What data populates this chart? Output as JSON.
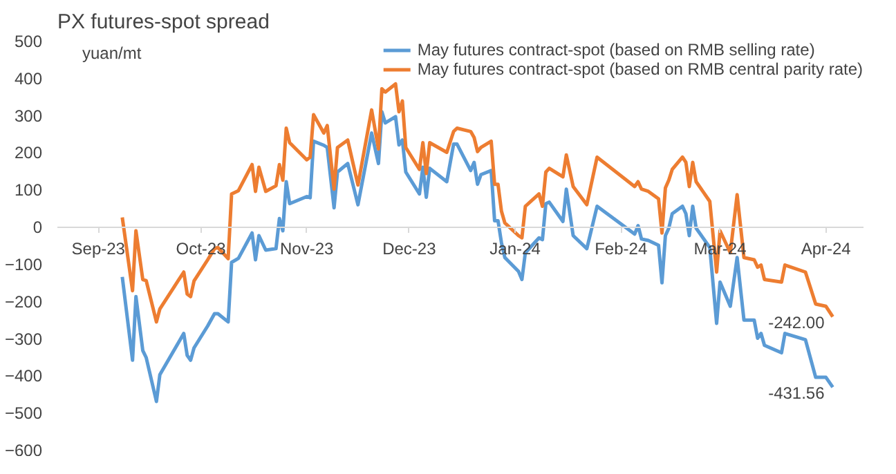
{
  "chart_data": {
    "type": "line",
    "title": "PX futures-spot spread",
    "ylabel": "yuan/mt",
    "x": [
      "2023-09-08",
      "2023-09-11",
      "2023-09-12",
      "2023-09-14",
      "2023-09-15",
      "2023-09-18",
      "2023-09-19",
      "2023-09-26",
      "2023-09-27",
      "2023-09-28",
      "2023-09-29",
      "2023-10-03",
      "2023-10-05",
      "2023-10-06",
      "2023-10-09",
      "2023-10-10",
      "2023-10-12",
      "2023-10-16",
      "2023-10-17",
      "2023-10-18",
      "2023-10-20",
      "2023-10-23",
      "2023-10-24",
      "2023-10-25",
      "2023-10-26",
      "2023-10-27",
      "2023-11-01",
      "2023-11-02",
      "2023-11-03",
      "2023-11-06",
      "2023-11-07",
      "2023-11-09",
      "2023-11-10",
      "2023-11-13",
      "2023-11-16",
      "2023-11-20",
      "2023-11-22",
      "2023-11-23",
      "2023-11-24",
      "2023-11-27",
      "2023-11-28",
      "2023-11-29",
      "2023-11-30",
      "2023-12-04",
      "2023-12-05",
      "2023-12-06",
      "2023-12-07",
      "2023-12-12",
      "2023-12-14",
      "2023-12-15",
      "2023-12-19",
      "2023-12-20",
      "2023-12-21",
      "2023-12-22",
      "2023-12-25",
      "2023-12-26",
      "2023-12-27",
      "2023-12-28",
      "2023-12-29",
      "2024-01-02",
      "2024-01-03",
      "2024-01-04",
      "2024-01-08",
      "2024-01-09",
      "2024-01-10",
      "2024-01-11",
      "2024-01-15",
      "2024-01-16",
      "2024-01-18",
      "2024-01-22",
      "2024-01-25",
      "2024-02-05",
      "2024-02-06",
      "2024-02-07",
      "2024-02-09",
      "2024-02-12",
      "2024-02-13",
      "2024-02-14",
      "2024-02-15",
      "2024-02-16",
      "2024-02-19",
      "2024-02-20",
      "2024-02-21",
      "2024-02-22",
      "2024-02-23",
      "2024-02-27",
      "2024-02-29",
      "2024-03-01",
      "2024-03-04",
      "2024-03-06",
      "2024-03-08",
      "2024-03-11",
      "2024-03-12",
      "2024-03-13",
      "2024-03-14",
      "2024-03-19",
      "2024-03-20",
      "2024-03-26",
      "2024-03-29",
      "2024-04-01",
      "2024-04-03"
    ],
    "series": [
      {
        "name": "May futures contract-spot (based on RMB selling rate)",
        "color": "#5b9bd5",
        "values": [
          -135,
          -359,
          -188,
          -333,
          -352,
          -470,
          -398,
          -287,
          -346,
          -359,
          -326,
          -267,
          -234,
          -234,
          -256,
          -96,
          -85,
          -17,
          -89,
          -24,
          -63,
          -59,
          22,
          -11,
          121,
          62,
          81,
          78,
          230,
          219,
          213,
          51,
          147,
          170,
          59,
          252,
          170,
          309,
          279,
          296,
          220,
          233,
          147,
          88,
          160,
          79,
          157,
          121,
          222,
          222,
          151,
          173,
          114,
          140,
          151,
          16,
          16,
          -43,
          -83,
          -120,
          -142,
          -70,
          -30,
          -35,
          62,
          66,
          14,
          101,
          -24,
          -59,
          55,
          -20,
          3,
          -33,
          -37,
          -50,
          -151,
          -24,
          -4,
          35,
          55,
          35,
          -24,
          55,
          -4,
          -56,
          -260,
          -149,
          -214,
          -83,
          -251,
          -251,
          -300,
          -287,
          -319,
          -339,
          -287,
          -304,
          -405,
          -405,
          -431.56
        ]
      },
      {
        "name": "May futures contract-spot (based on RMB central parity rate)",
        "color": "#ed7d31",
        "values": [
          25,
          -172,
          -11,
          -142,
          -145,
          -256,
          -221,
          -122,
          -181,
          -188,
          -146,
          -89,
          -59,
          -56,
          -86,
          88,
          97,
          167,
          95,
          160,
          95,
          110,
          167,
          125,
          265,
          226,
          180,
          187,
          301,
          252,
          272,
          101,
          213,
          233,
          112,
          314,
          209,
          371,
          362,
          384,
          309,
          338,
          213,
          154,
          226,
          143,
          226,
          200,
          256,
          265,
          256,
          240,
          202,
          213,
          230,
          114,
          114,
          42,
          10,
          -24,
          -30,
          55,
          88,
          55,
          147,
          157,
          134,
          193,
          108,
          59,
          187,
          108,
          121,
          101,
          95,
          75,
          -17,
          104,
          125,
          154,
          187,
          173,
          108,
          173,
          121,
          68,
          -122,
          -11,
          -70,
          86,
          -83,
          -89,
          -109,
          -103,
          -142,
          -149,
          -103,
          -122,
          -208,
          -214,
          -242
        ]
      }
    ],
    "xlim": [
      "2023-08-20",
      "2024-04-12"
    ],
    "xticks": [
      {
        "value": "2023-09-01",
        "label": "Sep-23"
      },
      {
        "value": "2023-10-01",
        "label": "Oct-23"
      },
      {
        "value": "2023-11-01",
        "label": "Nov-23"
      },
      {
        "value": "2023-12-01",
        "label": "Dec-23"
      },
      {
        "value": "2024-01-01",
        "label": "Jan-24"
      },
      {
        "value": "2024-02-01",
        "label": "Feb-24"
      },
      {
        "value": "2024-03-01",
        "label": "Mar-24"
      },
      {
        "value": "2024-04-01",
        "label": "Apr-24"
      }
    ],
    "ylim": [
      -600,
      500
    ],
    "yticks": [
      -600,
      -500,
      -400,
      -300,
      -200,
      -100,
      0,
      100,
      200,
      300,
      400,
      500
    ],
    "grid": false,
    "legend": "top",
    "marker": "none",
    "line_style": "solid",
    "annotations": [
      {
        "text": "-242.00",
        "x": "2024-04-03",
        "y": -242
      },
      {
        "text": "-431.56",
        "x": "2024-04-03",
        "y": -431.56
      }
    ]
  }
}
